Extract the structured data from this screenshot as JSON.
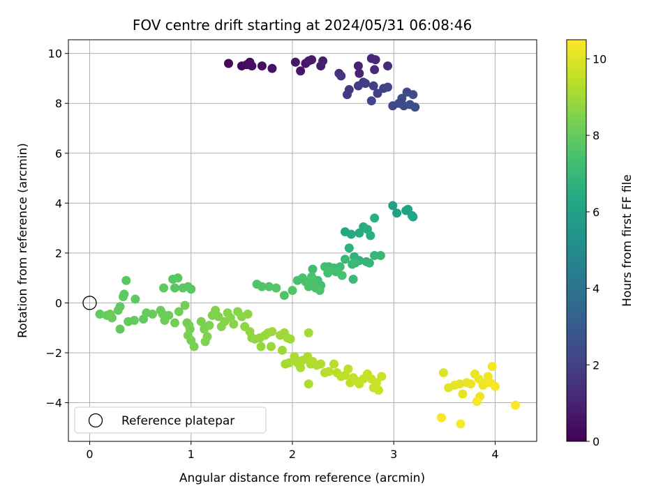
{
  "chart_data": {
    "type": "scatter",
    "title": "FOV centre drift starting at 2024/05/31 06:08:46",
    "xlabel": "Angular distance from reference (arcmin)",
    "ylabel": "Rotation from reference (arcmin)",
    "xlim": [
      -0.21,
      4.41
    ],
    "ylim": [
      -5.55,
      10.55
    ],
    "xticks": [
      0,
      1,
      2,
      3,
      4
    ],
    "yticks": [
      -4,
      -2,
      0,
      2,
      4,
      6,
      8,
      10
    ],
    "grid": true,
    "colorbar": {
      "label": "Hours from first FF file",
      "colormap": "viridis",
      "range": [
        0,
        10.5
      ],
      "ticks": [
        0,
        2,
        4,
        6,
        8,
        10
      ]
    },
    "legend": {
      "location": "lower-left",
      "entries": [
        {
          "label": "Reference platepar",
          "marker": "open-circle"
        }
      ]
    },
    "reference_point": {
      "x": 0,
      "y": 0
    },
    "points": [
      [
        1.37,
        9.6,
        0.2
      ],
      [
        1.5,
        9.5,
        0.25
      ],
      [
        1.55,
        9.55,
        0.3
      ],
      [
        1.58,
        9.65,
        0.35
      ],
      [
        1.6,
        9.5,
        0.4
      ],
      [
        1.7,
        9.5,
        0.45
      ],
      [
        1.8,
        9.4,
        0.5
      ],
      [
        2.03,
        9.65,
        0.6
      ],
      [
        2.08,
        9.3,
        0.65
      ],
      [
        2.13,
        9.6,
        0.7
      ],
      [
        2.16,
        9.7,
        0.75
      ],
      [
        2.19,
        9.75,
        0.8
      ],
      [
        2.28,
        9.5,
        0.85
      ],
      [
        2.3,
        9.7,
        0.9
      ],
      [
        2.65,
        9.5,
        1.0
      ],
      [
        2.66,
        9.2,
        1.05
      ],
      [
        2.78,
        9.8,
        1.1
      ],
      [
        2.82,
        9.75,
        1.15
      ],
      [
        2.81,
        9.35,
        1.2
      ],
      [
        2.94,
        9.5,
        1.3
      ],
      [
        2.46,
        9.2,
        1.5
      ],
      [
        2.48,
        9.1,
        1.6
      ],
      [
        2.54,
        8.35,
        1.7
      ],
      [
        2.56,
        8.55,
        1.75
      ],
      [
        2.65,
        8.7,
        1.8
      ],
      [
        2.7,
        8.85,
        1.85
      ],
      [
        2.72,
        8.8,
        1.9
      ],
      [
        2.8,
        8.7,
        1.95
      ],
      [
        2.84,
        8.4,
        2.0
      ],
      [
        2.9,
        8.6,
        2.05
      ],
      [
        2.94,
        8.65,
        2.1
      ],
      [
        2.99,
        7.9,
        2.2
      ],
      [
        3.08,
        8.2,
        2.25
      ],
      [
        3.1,
        7.9,
        2.3
      ],
      [
        3.13,
        8.45,
        2.35
      ],
      [
        3.16,
        7.95,
        2.4
      ],
      [
        3.19,
        8.35,
        2.45
      ],
      [
        3.21,
        7.85,
        2.5
      ],
      [
        2.78,
        8.1,
        2.15
      ],
      [
        3.05,
        8.0,
        2.3
      ],
      [
        2.99,
        3.9,
        5.9
      ],
      [
        3.03,
        3.6,
        5.95
      ],
      [
        3.12,
        3.7,
        6.0
      ],
      [
        3.14,
        3.75,
        6.05
      ],
      [
        3.18,
        3.5,
        6.1
      ],
      [
        3.19,
        3.45,
        6.15
      ],
      [
        2.52,
        2.85,
        6.3
      ],
      [
        2.58,
        2.75,
        6.35
      ],
      [
        2.66,
        2.8,
        6.4
      ],
      [
        2.7,
        3.05,
        6.45
      ],
      [
        2.74,
        2.95,
        6.5
      ],
      [
        2.77,
        2.7,
        6.55
      ],
      [
        2.81,
        3.4,
        6.6
      ],
      [
        2.56,
        2.2,
        6.7
      ],
      [
        2.61,
        1.85,
        6.75
      ],
      [
        2.66,
        1.7,
        6.8
      ],
      [
        2.73,
        1.65,
        6.85
      ],
      [
        2.76,
        1.6,
        6.9
      ],
      [
        2.81,
        1.9,
        6.95
      ],
      [
        2.87,
        1.9,
        7.0
      ],
      [
        2.52,
        1.75,
        7.0
      ],
      [
        2.59,
        1.55,
        7.05
      ],
      [
        2.62,
        1.6,
        7.1
      ],
      [
        2.6,
        0.95,
        7.1
      ],
      [
        2.36,
        1.45,
        7.15
      ],
      [
        2.41,
        1.4,
        7.2
      ],
      [
        2.47,
        1.45,
        7.2
      ],
      [
        2.2,
        1.35,
        7.25
      ],
      [
        2.25,
        0.9,
        7.3
      ],
      [
        2.28,
        0.7,
        7.3
      ],
      [
        2.32,
        1.45,
        7.3
      ],
      [
        2.35,
        1.2,
        7.35
      ],
      [
        2.43,
        1.25,
        7.35
      ],
      [
        2.49,
        1.1,
        7.4
      ],
      [
        2.05,
        0.9,
        7.4
      ],
      [
        2.1,
        1.0,
        7.45
      ],
      [
        2.13,
        0.85,
        7.45
      ],
      [
        2.16,
        0.65,
        7.5
      ],
      [
        2.19,
        1.05,
        7.5
      ],
      [
        2.21,
        0.8,
        7.5
      ],
      [
        2.23,
        0.6,
        7.55
      ],
      [
        2.27,
        0.5,
        7.55
      ],
      [
        2.0,
        0.5,
        7.6
      ],
      [
        1.92,
        0.3,
        7.6
      ],
      [
        1.65,
        0.75,
        7.6
      ],
      [
        1.7,
        0.65,
        7.65
      ],
      [
        1.77,
        0.65,
        7.65
      ],
      [
        1.84,
        0.6,
        7.7
      ],
      [
        0.82,
        0.95,
        7.7
      ],
      [
        0.87,
        1.0,
        7.75
      ],
      [
        0.84,
        0.6,
        7.75
      ],
      [
        0.92,
        0.6,
        7.8
      ],
      [
        0.97,
        0.65,
        7.8
      ],
      [
        1.0,
        0.55,
        7.8
      ],
      [
        0.73,
        0.6,
        7.85
      ],
      [
        0.36,
        0.9,
        7.8
      ],
      [
        0.34,
        0.35,
        7.85
      ],
      [
        0.33,
        0.25,
        7.85
      ],
      [
        0.45,
        0.15,
        7.9
      ],
      [
        0.3,
        -0.15,
        7.9
      ],
      [
        0.28,
        -0.3,
        7.95
      ],
      [
        0.3,
        -1.05,
        7.95
      ],
      [
        0.38,
        -0.75,
        8.0
      ],
      [
        0.44,
        -0.7,
        8.0
      ],
      [
        0.53,
        -0.65,
        8.0
      ],
      [
        0.56,
        -0.4,
        8.05
      ],
      [
        0.62,
        -0.45,
        8.05
      ],
      [
        0.1,
        -0.45,
        8.0
      ],
      [
        0.17,
        -0.5,
        8.05
      ],
      [
        0.22,
        -0.6,
        8.05
      ],
      [
        0.2,
        -0.45,
        8.1
      ],
      [
        0.7,
        -0.3,
        8.1
      ],
      [
        0.72,
        -0.45,
        8.1
      ],
      [
        0.74,
        -0.7,
        8.15
      ],
      [
        0.78,
        -0.5,
        8.15
      ],
      [
        0.84,
        -0.8,
        8.2
      ],
      [
        0.88,
        -0.35,
        8.2
      ],
      [
        0.94,
        -0.1,
        8.25
      ],
      [
        0.96,
        -0.8,
        8.25
      ],
      [
        0.98,
        -0.9,
        8.3
      ],
      [
        0.99,
        -1.05,
        8.3
      ],
      [
        1.0,
        -1.5,
        8.35
      ],
      [
        1.03,
        -1.75,
        8.35
      ],
      [
        0.97,
        -1.3,
        8.4
      ],
      [
        1.1,
        -0.75,
        8.4
      ],
      [
        1.13,
        -1.05,
        8.4
      ],
      [
        1.14,
        -1.55,
        8.45
      ],
      [
        1.16,
        -1.35,
        8.45
      ],
      [
        1.18,
        -0.9,
        8.45
      ],
      [
        1.21,
        -0.5,
        8.5
      ],
      [
        1.24,
        -0.3,
        8.5
      ],
      [
        1.27,
        -0.55,
        8.5
      ],
      [
        1.3,
        -0.95,
        8.55
      ],
      [
        1.33,
        -0.75,
        8.55
      ],
      [
        1.36,
        -0.4,
        8.6
      ],
      [
        1.39,
        -0.6,
        8.6
      ],
      [
        1.42,
        -0.85,
        8.6
      ],
      [
        1.46,
        -0.35,
        8.65
      ],
      [
        1.5,
        -0.55,
        8.65
      ],
      [
        1.53,
        -0.95,
        8.7
      ],
      [
        1.56,
        -0.45,
        8.7
      ],
      [
        1.58,
        -1.15,
        8.75
      ],
      [
        1.6,
        -1.4,
        8.75
      ],
      [
        1.63,
        -1.45,
        8.8
      ],
      [
        1.68,
        -1.4,
        8.8
      ],
      [
        1.69,
        -1.75,
        8.85
      ],
      [
        1.73,
        -1.3,
        8.85
      ],
      [
        1.76,
        -1.2,
        8.9
      ],
      [
        1.79,
        -1.75,
        8.9
      ],
      [
        1.8,
        -1.15,
        8.9
      ],
      [
        1.88,
        -1.3,
        8.95
      ],
      [
        1.9,
        -1.9,
        8.95
      ],
      [
        1.92,
        -1.2,
        9.0
      ],
      [
        1.95,
        -1.4,
        9.0
      ],
      [
        1.98,
        -1.45,
        9.0
      ],
      [
        2.16,
        -1.2,
        9.05
      ],
      [
        1.93,
        -2.45,
        9.1
      ],
      [
        1.97,
        -2.4,
        9.1
      ],
      [
        2.02,
        -2.15,
        9.15
      ],
      [
        2.05,
        -2.4,
        9.15
      ],
      [
        2.08,
        -2.6,
        9.2
      ],
      [
        2.1,
        -2.3,
        9.2
      ],
      [
        2.15,
        -2.15,
        9.2
      ],
      [
        2.18,
        -2.45,
        9.25
      ],
      [
        2.2,
        -2.35,
        9.25
      ],
      [
        2.24,
        -2.5,
        9.3
      ],
      [
        2.28,
        -2.45,
        9.3
      ],
      [
        2.32,
        -2.8,
        9.35
      ],
      [
        2.36,
        -2.75,
        9.35
      ],
      [
        2.41,
        -2.45,
        9.4
      ],
      [
        2.44,
        -2.8,
        9.4
      ],
      [
        2.48,
        -2.95,
        9.45
      ],
      [
        2.52,
        -2.9,
        9.45
      ],
      [
        2.55,
        -2.65,
        9.5
      ],
      [
        2.57,
        -3.2,
        9.5
      ],
      [
        2.6,
        -3.0,
        9.55
      ],
      [
        2.62,
        -3.1,
        9.55
      ],
      [
        2.66,
        -3.25,
        9.6
      ],
      [
        2.7,
        -3.05,
        9.6
      ],
      [
        2.74,
        -2.85,
        9.6
      ],
      [
        2.78,
        -3.05,
        9.65
      ],
      [
        2.8,
        -3.4,
        9.65
      ],
      [
        2.83,
        -3.2,
        9.7
      ],
      [
        2.85,
        -3.5,
        9.7
      ],
      [
        2.88,
        -2.95,
        9.7
      ],
      [
        2.16,
        -3.25,
        9.2
      ],
      [
        3.49,
        -2.8,
        10.0
      ],
      [
        3.54,
        -3.4,
        10.05
      ],
      [
        3.6,
        -3.3,
        10.1
      ],
      [
        3.65,
        -3.25,
        10.1
      ],
      [
        3.68,
        -3.65,
        10.15
      ],
      [
        3.72,
        -3.2,
        10.15
      ],
      [
        3.76,
        -3.25,
        10.2
      ],
      [
        3.8,
        -2.85,
        10.2
      ],
      [
        3.84,
        -3.05,
        10.25
      ],
      [
        3.85,
        -3.75,
        10.25
      ],
      [
        3.88,
        -3.3,
        10.3
      ],
      [
        3.91,
        -3.2,
        10.3
      ],
      [
        3.93,
        -2.95,
        10.3
      ],
      [
        3.95,
        -3.2,
        10.35
      ],
      [
        3.97,
        -2.55,
        10.35
      ],
      [
        4.0,
        -3.35,
        10.4
      ],
      [
        3.47,
        -4.6,
        10.4
      ],
      [
        3.66,
        -4.85,
        10.45
      ],
      [
        3.82,
        -3.95,
        10.45
      ],
      [
        4.2,
        -4.1,
        10.5
      ]
    ]
  }
}
